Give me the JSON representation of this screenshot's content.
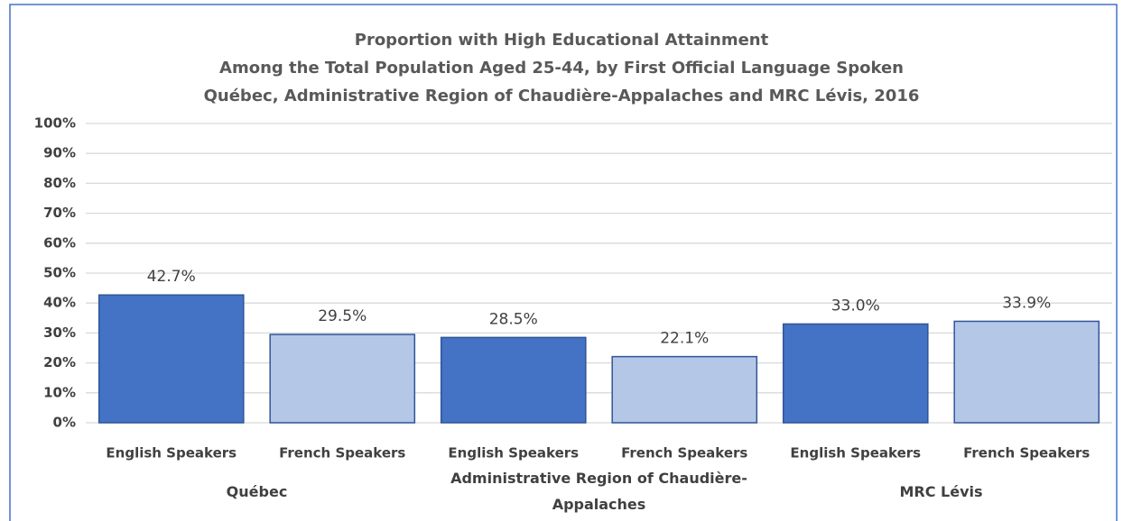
{
  "chart_data": {
    "type": "bar",
    "title": "Proportion with High Educational Attainment",
    "subtitle": [
      "Among the Total Population Aged 25-44, by First Official Language Spoken",
      "Québec, Administrative Region of Chaudière-Appalaches and MRC Lévis, 2016"
    ],
    "categories": [
      "Québec",
      "Administrative Region of Chaudière-Appalaches",
      "MRC Lévis"
    ],
    "series": [
      {
        "name": "English Speakers",
        "color": "#4472c4",
        "values": [
          42.7,
          28.5,
          33.0
        ],
        "value_labels": [
          "42.7%",
          "28.5%",
          "33.0%"
        ]
      },
      {
        "name": "French Speakers",
        "color": "#b4c7e7",
        "values": [
          29.5,
          22.1,
          33.9
        ],
        "value_labels": [
          "29.5%",
          "22.1%",
          "33.9%"
        ]
      }
    ],
    "ylim": [
      0,
      100
    ],
    "yticks": [
      {
        "value": 0,
        "label": "0%"
      },
      {
        "value": 10,
        "label": "10%"
      },
      {
        "value": 20,
        "label": "20%"
      },
      {
        "value": 30,
        "label": "30%"
      },
      {
        "value": 40,
        "label": "40%"
      },
      {
        "value": 50,
        "label": "50%"
      },
      {
        "value": 60,
        "label": "60%"
      },
      {
        "value": 70,
        "label": "70%"
      },
      {
        "value": 80,
        "label": "80%"
      },
      {
        "value": 90,
        "label": "90%"
      },
      {
        "value": 100,
        "label": "100%"
      }
    ],
    "grid": true
  }
}
